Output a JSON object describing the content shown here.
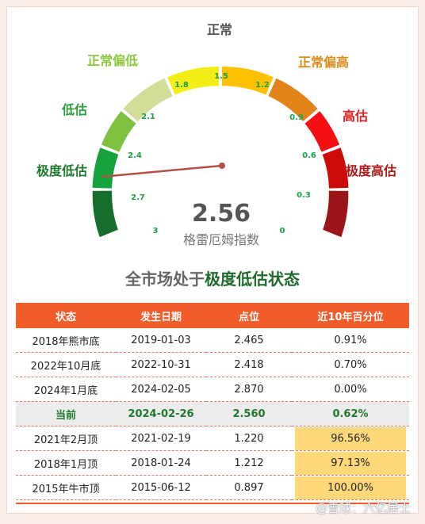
{
  "gauge": {
    "value": "2.56",
    "subtitle": "格雷厄姆指数",
    "zones": [
      {
        "label": "极度低估",
        "color": "#1f6b2e"
      },
      {
        "label": "低估",
        "color": "#3aa84a"
      },
      {
        "label": "正常偏低",
        "color": "#8cc63f"
      },
      {
        "label": "正常",
        "color": "#d8e68a"
      },
      {
        "label": "正常偏高",
        "color": "#e88a1a"
      },
      {
        "label": "高估",
        "color": "#e02020"
      },
      {
        "label": "极度高估",
        "color": "#b01818"
      }
    ],
    "ticks": [
      "3",
      "2.7",
      "2.4",
      "2.1",
      "1.8",
      "1.5",
      "1.2",
      "0.9",
      "0.6",
      "0.3",
      "0"
    ]
  },
  "headline": {
    "prefix": "全市场处于",
    "highlight": "极度低估状态"
  },
  "table": {
    "headers": [
      "状态",
      "发生日期",
      "点位",
      "近10年百分位"
    ],
    "rows": [
      {
        "state": "2018年熊市底",
        "date": "2019-01-03",
        "point": "2.465",
        "pct": "0.91%"
      },
      {
        "state": "2022年10月底",
        "date": "2022-10-31",
        "point": "2.418",
        "pct": "0.70%"
      },
      {
        "state": "2024年1月底",
        "date": "2024-02-05",
        "point": "2.870",
        "pct": "0.00%"
      },
      {
        "state": "当前",
        "date": "2024-02-26",
        "point": "2.560",
        "pct": "0.62%"
      },
      {
        "state": "2021年2月顶",
        "date": "2021-02-19",
        "point": "1.220",
        "pct": "96.56%"
      },
      {
        "state": "2018年1月顶",
        "date": "2018-01-24",
        "point": "1.212",
        "pct": "97.13%"
      },
      {
        "state": "2015年牛市顶",
        "date": "2015-06-12",
        "point": "0.897",
        "pct": "100.00%"
      }
    ]
  },
  "watermark": "@雪球：六亿居士"
}
